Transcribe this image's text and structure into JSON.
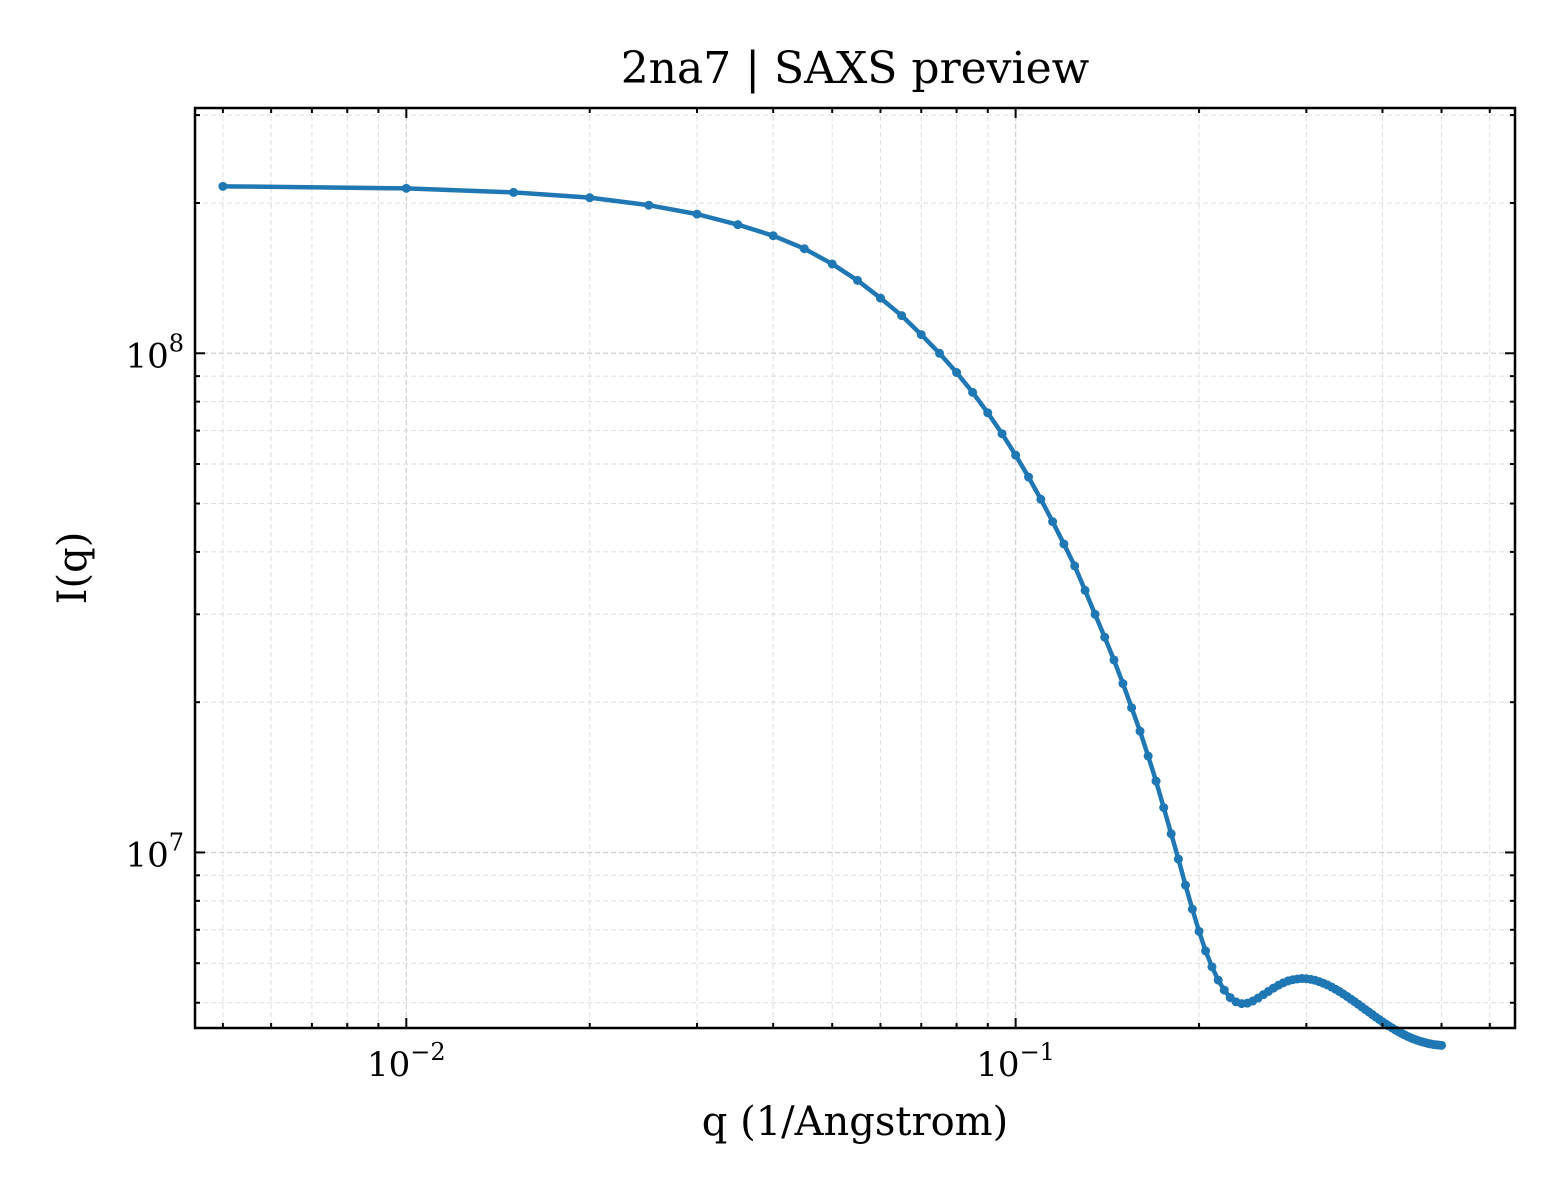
{
  "chart_data": {
    "type": "line",
    "title": "2na7 | SAXS preview",
    "xlabel": "q (1/Angstrom)",
    "ylabel": "I(q)",
    "xscale": "log",
    "yscale": "log",
    "xlim": [
      0.0045,
      0.66
    ],
    "ylim": [
      4450000,
      310000000
    ],
    "grid": true,
    "x_ticks": [
      {
        "value": 0.01,
        "base": "10",
        "exp": "−2"
      },
      {
        "value": 0.1,
        "base": "10",
        "exp": "−1"
      }
    ],
    "y_ticks": [
      {
        "value": 10000000,
        "base": "10",
        "exp": "7"
      },
      {
        "value": 100000000,
        "base": "10",
        "exp": "8"
      }
    ],
    "colors": {
      "series": "#1f77b4"
    },
    "series": [
      {
        "x": [
          0.005,
          0.01,
          0.015,
          0.02,
          0.025,
          0.03,
          0.035,
          0.04,
          0.045,
          0.05,
          0.055,
          0.06,
          0.065,
          0.07,
          0.075,
          0.08,
          0.085,
          0.09,
          0.095,
          0.1,
          0.105,
          0.11,
          0.115,
          0.12,
          0.125,
          0.13,
          0.135,
          0.14,
          0.145,
          0.15,
          0.155,
          0.16,
          0.165,
          0.17,
          0.175,
          0.18,
          0.185,
          0.19,
          0.195,
          0.2,
          0.205,
          0.21,
          0.215,
          0.22,
          0.225,
          0.23,
          0.235,
          0.24,
          0.245,
          0.25,
          0.255,
          0.26,
          0.265,
          0.27,
          0.275,
          0.28,
          0.285,
          0.29,
          0.295,
          0.3,
          0.305,
          0.31,
          0.315,
          0.32,
          0.325,
          0.33,
          0.335,
          0.34,
          0.345,
          0.35,
          0.355,
          0.36,
          0.365,
          0.37,
          0.375,
          0.38,
          0.385,
          0.39,
          0.395,
          0.4,
          0.405,
          0.41,
          0.415,
          0.42,
          0.425,
          0.43,
          0.435,
          0.44,
          0.445,
          0.45,
          0.455,
          0.46,
          0.465,
          0.47,
          0.475,
          0.48,
          0.485,
          0.49,
          0.495,
          0.5
        ],
        "y": [
          216000000,
          214000000,
          210000000,
          205000000,
          198000000,
          190000000,
          181000000,
          172000000,
          162000000,
          151000000,
          140000000,
          129000000,
          119000000,
          109000000,
          100000000,
          91500000,
          83500000,
          76000000,
          69000000,
          62500000,
          56500000,
          51000000,
          46000000,
          41500000,
          37500000,
          33500000,
          30000000,
          27000000,
          24300000,
          21800000,
          19500000,
          17500000,
          15600000,
          13900000,
          12300000,
          10900000,
          9700000,
          8600000,
          7700000,
          6950000,
          6350000,
          5900000,
          5550000,
          5300000,
          5120000,
          5020000,
          4980000,
          4990000,
          5040000,
          5110000,
          5190000,
          5270000,
          5350000,
          5420000,
          5480000,
          5530000,
          5560000,
          5580000,
          5590000,
          5585000,
          5570000,
          5545000,
          5510000,
          5470000,
          5425000,
          5375000,
          5320000,
          5265000,
          5205000,
          5145000,
          5085000,
          5025000,
          4965000,
          4905000,
          4845000,
          4790000,
          4735000,
          4680000,
          4630000,
          4580000,
          4535000,
          4490000,
          4450000,
          4410000,
          4375000,
          4340000,
          4310000,
          4280000,
          4255000,
          4230000,
          4210000,
          4190000,
          4175000,
          4160000,
          4145000,
          4135000,
          4125000,
          4118000,
          4112000,
          4108000
        ]
      }
    ]
  }
}
